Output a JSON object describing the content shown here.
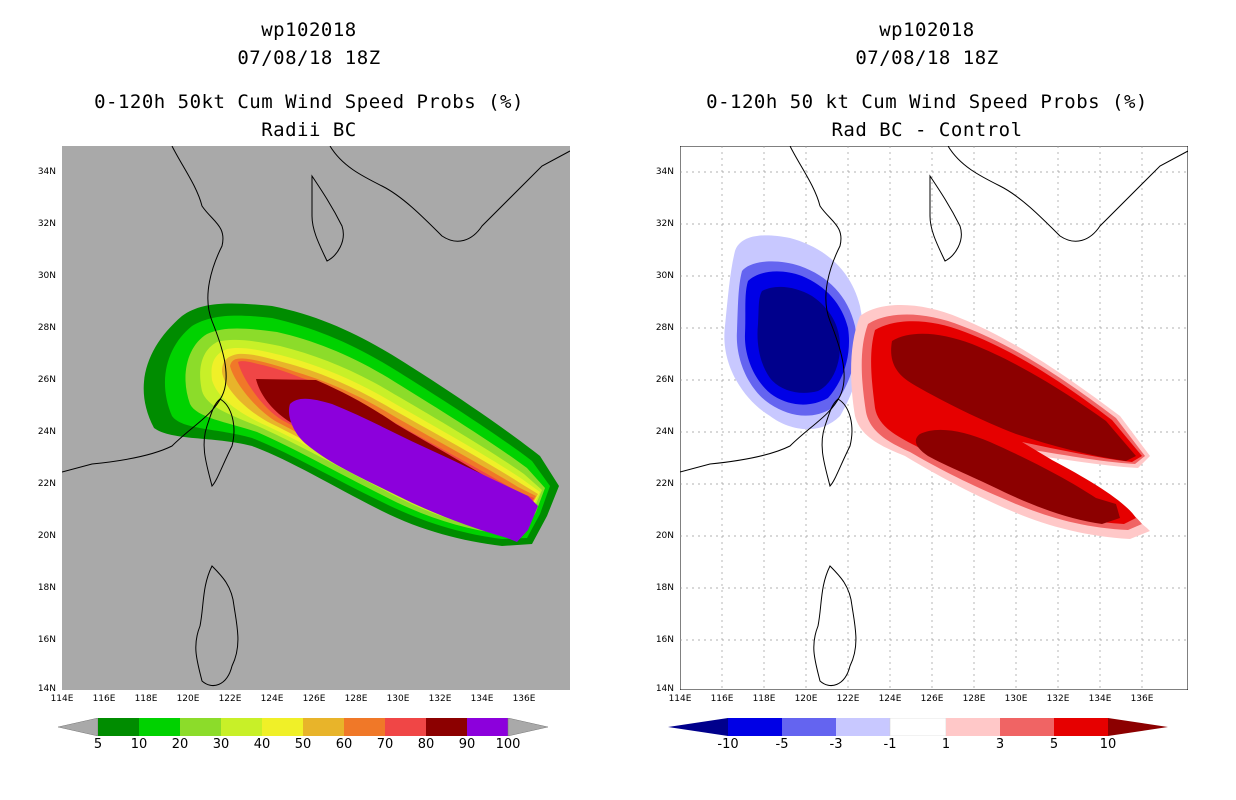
{
  "left_panel": {
    "title_line1": "wp102018",
    "title_line2": "07/08/18 18Z",
    "title_line3": "0-120h 50kt Cum Wind Speed Probs (%)",
    "title_line4": "Radii BC",
    "background_color": "#a9a9a9",
    "colorbar": {
      "labels": [
        "5",
        "10",
        "20",
        "30",
        "40",
        "50",
        "60",
        "70",
        "80",
        "90",
        "100"
      ],
      "colors": [
        "#008c00",
        "#00d200",
        "#8cdc2a",
        "#c8f028",
        "#f0f028",
        "#e8b42a",
        "#e0a028",
        "#f07828",
        "#f04646",
        "#8c0000",
        "#8c00dc"
      ],
      "under_color": "#a9a9a9",
      "over_color": "#a9a9a9"
    }
  },
  "right_panel": {
    "title_line1": "wp102018",
    "title_line2": "07/08/18 18Z",
    "title_line3": "0-120h 50 kt Cum Wind Speed Probs (%)",
    "title_line4": "Rad BC - Control",
    "background_color": "#ffffff",
    "colorbar": {
      "labels": [
        "-10",
        "-5",
        "-3",
        "-1",
        "1",
        "3",
        "5",
        "10"
      ],
      "colors": [
        "#00008c",
        "#0000e6",
        "#6464f0",
        "#c8c8ff",
        "#ffffff",
        "#ffc8c8",
        "#f06464",
        "#e60000",
        "#8c0000"
      ]
    }
  },
  "axes": {
    "lat_labels": [
      "34N",
      "32N",
      "30N",
      "28N",
      "26N",
      "24N",
      "22N",
      "20N",
      "18N",
      "16N",
      "14N"
    ],
    "lon_labels": [
      "114E",
      "116E",
      "118E",
      "120E",
      "122E",
      "124E",
      "126E",
      "128E",
      "130E",
      "132E",
      "134E",
      "136E"
    ]
  }
}
